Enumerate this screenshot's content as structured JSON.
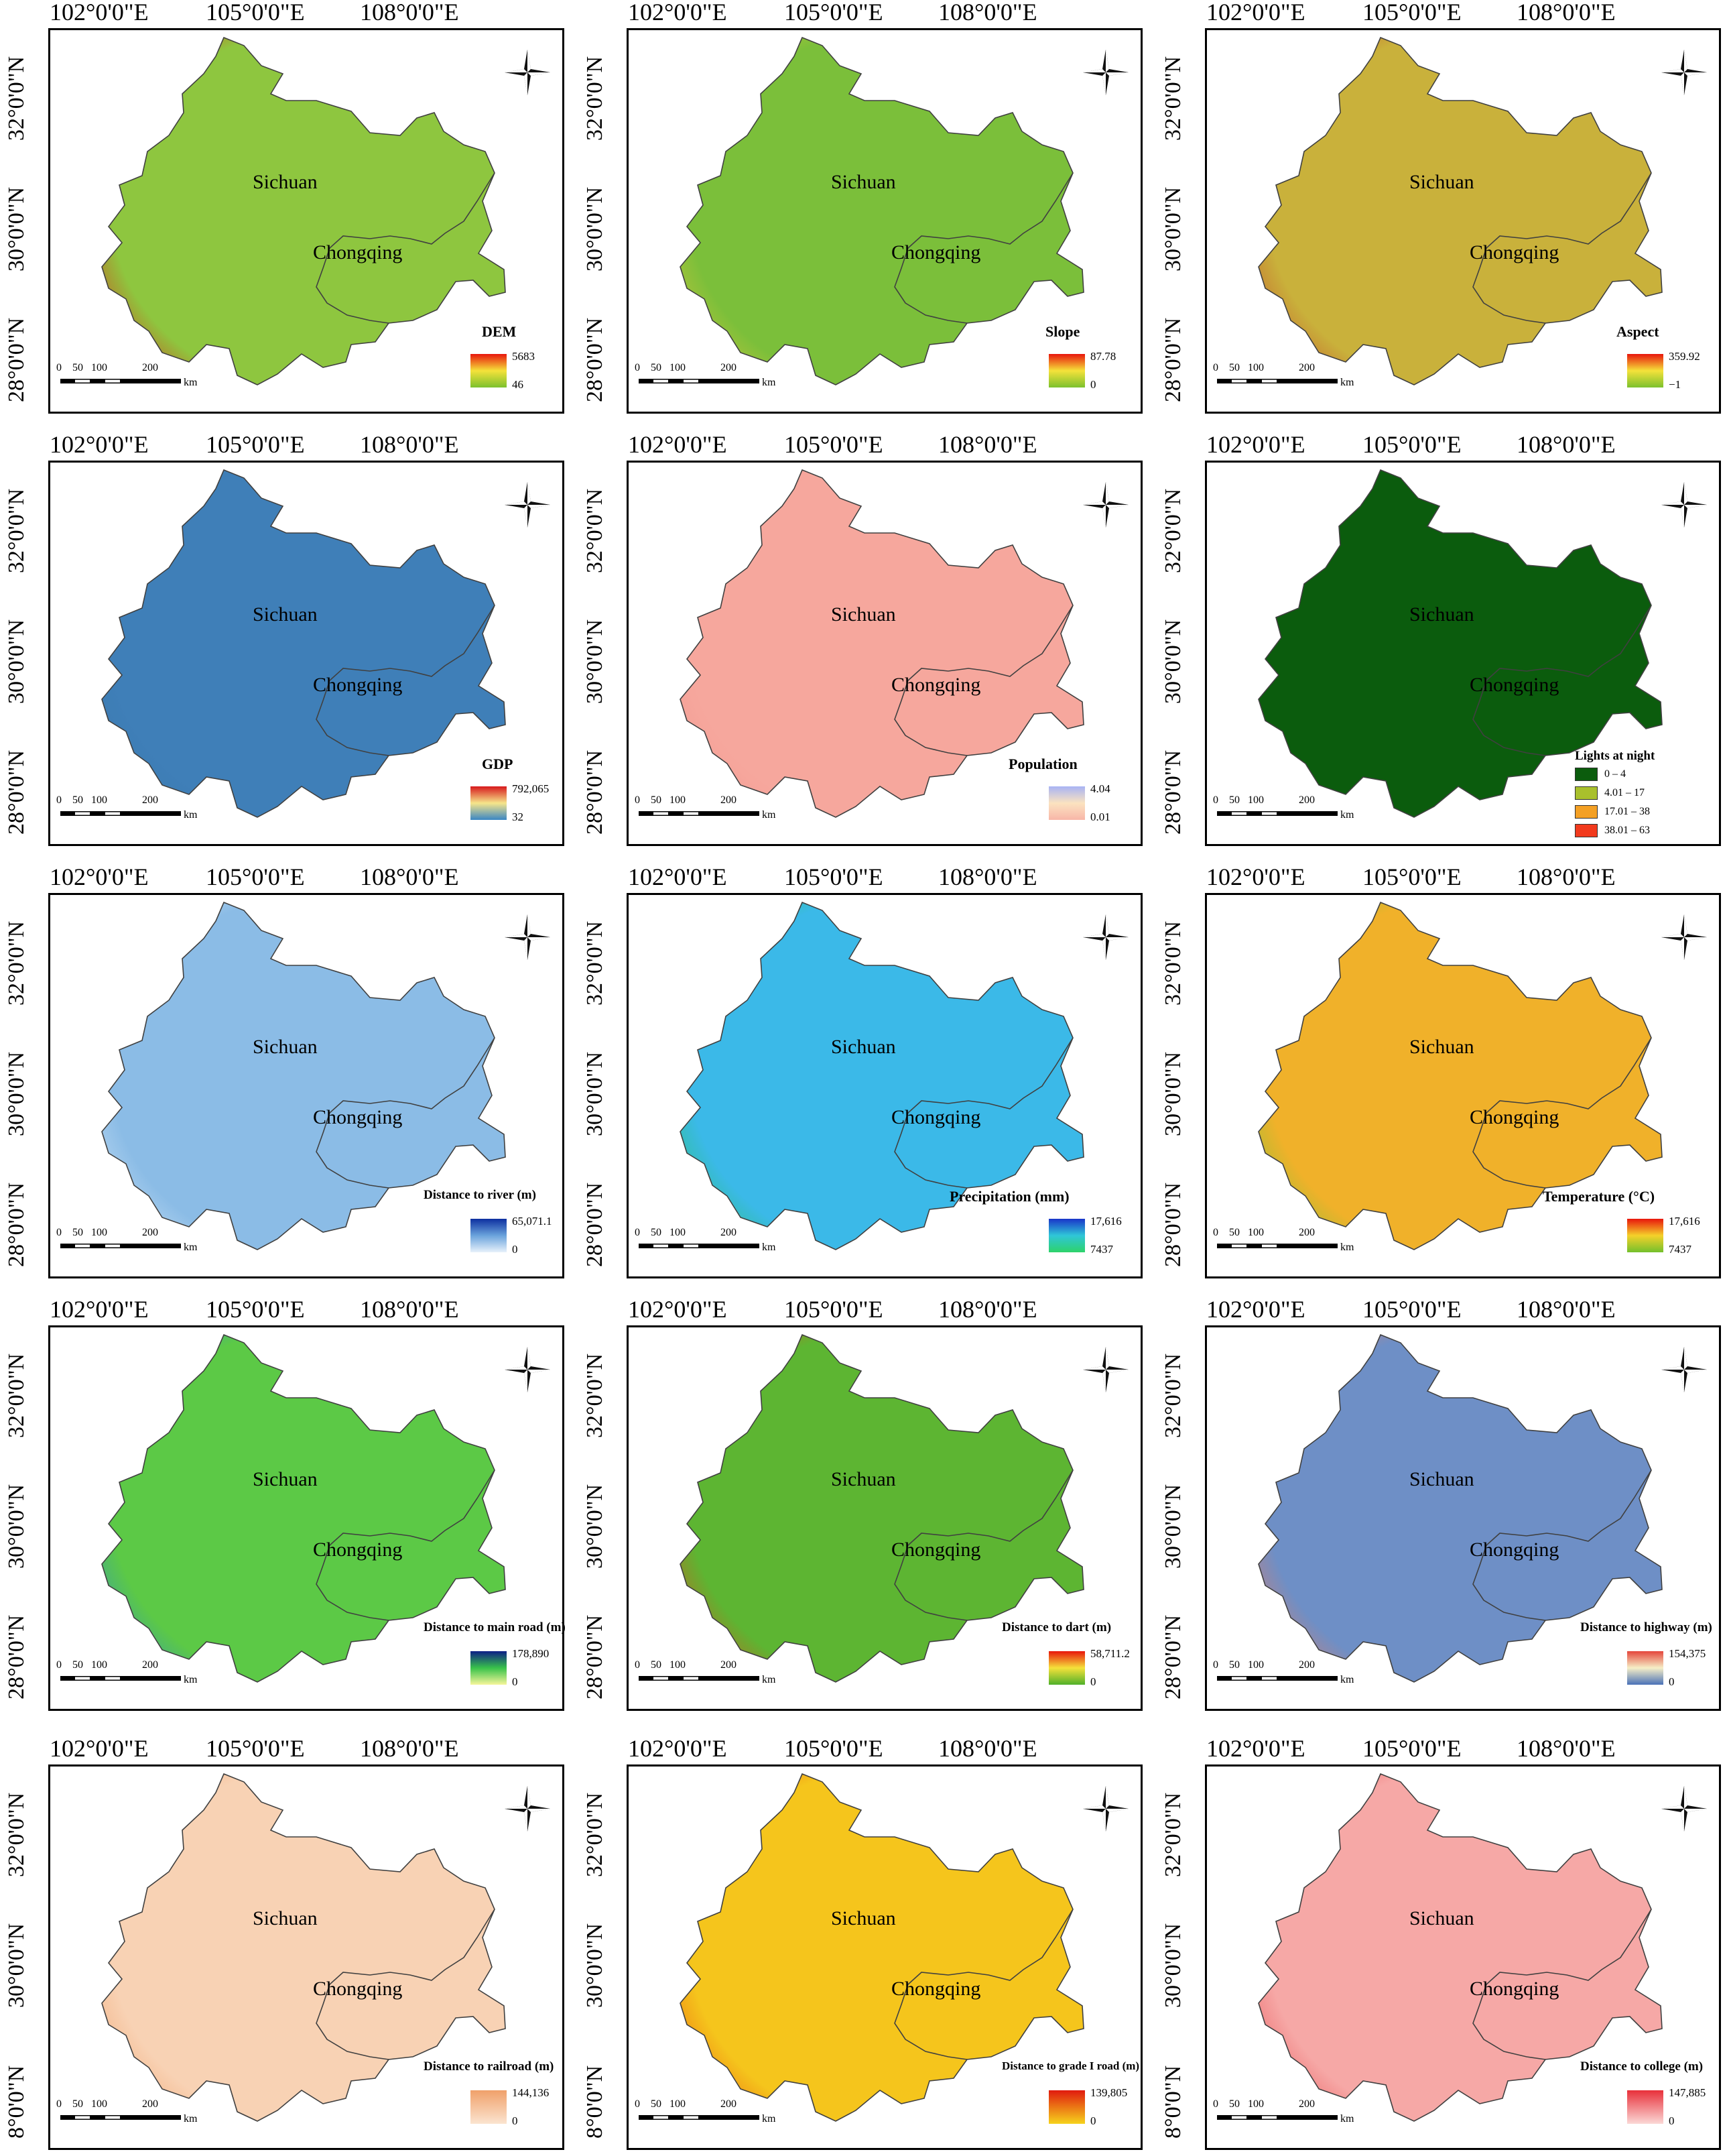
{
  "axes": {
    "lon_ticks": [
      "102°0'0\"E",
      "105°0'0\"E",
      "108°0'0\"E"
    ],
    "lat_ticks": [
      "32°0'0\"N",
      "30°0'0\"N",
      "28°0'0\"N"
    ],
    "lat_ticks_clipped": [
      "32°0'0\"N",
      "30°0'0\"N",
      "8°0'0\"N"
    ]
  },
  "regions": {
    "sichuan": "Sichuan",
    "chongqing": "Chongqing"
  },
  "scale": {
    "ticks": [
      "0",
      "50",
      "100",
      "200"
    ],
    "unit": "km"
  },
  "colors": {
    "outline": "#404040",
    "frame": "#000000"
  },
  "panels": [
    {
      "id": "dem",
      "title": "DEM",
      "max": "5683",
      "min": "46",
      "stops": [
        "#e8160c",
        "#f5e23a",
        "#7cc12e"
      ],
      "fill": "#8ec63f",
      "edge": "#e32212"
    },
    {
      "id": "slope",
      "title": "Slope",
      "max": "87.78",
      "min": "0",
      "stops": [
        "#e8160c",
        "#f5e23a",
        "#7cc12e"
      ],
      "fill": "#7bbf3a",
      "edge": "#d9c63c"
    },
    {
      "id": "aspect",
      "title": "Aspect",
      "max": "359.92",
      "min": "−1",
      "stops": [
        "#e8160c",
        "#f5e23a",
        "#7cc12e"
      ],
      "fill": "#c9b13b",
      "edge": "#c14a2a"
    },
    {
      "id": "gdp",
      "title": "GDP",
      "max": "792,065",
      "min": "32",
      "stops": [
        "#d7191c",
        "#f6e58a",
        "#3a86c4"
      ],
      "fill": "#3f7fb8",
      "edge": "#3a78ad"
    },
    {
      "id": "population",
      "title": "Population",
      "max": "4.04",
      "min": "0.01",
      "stops": [
        "#a8b4f4",
        "#fbe3c0",
        "#f8b6a8"
      ],
      "fill": "#f6a79d",
      "edge": "#f29a91"
    },
    {
      "id": "lights",
      "title": "Lights at night",
      "categories": [
        "0 – 4",
        "4.01 – 17",
        "17.01 – 38",
        "38.01 – 63"
      ],
      "cat_colors": [
        "#0b5c0d",
        "#a9c02c",
        "#f4a024",
        "#f23a1d"
      ],
      "fill": "#0b5c0d",
      "edge": "#0b5c0d"
    },
    {
      "id": "river",
      "title": "Distance to river (m)",
      "max": "65,071.1",
      "min": "0",
      "stops": [
        "#0d2fa0",
        "#6aa3dc",
        "#e7f2fb"
      ],
      "fill": "#8bbce6",
      "edge": "#cfe4f6"
    },
    {
      "id": "precip",
      "title": "Precipitation (mm)",
      "max": "17,616",
      "min": "7437",
      "stops": [
        "#1935c9",
        "#2fc6d8",
        "#2ed36a"
      ],
      "fill": "#3bb9e8",
      "edge": "#29c45f"
    },
    {
      "id": "temp",
      "title": "Temperature (°C)",
      "max": "17,616",
      "min": "7437",
      "stops": [
        "#e8160c",
        "#f5d12a",
        "#73c02c"
      ],
      "fill": "#f0b12a",
      "edge": "#7ac33a"
    },
    {
      "id": "mainroad",
      "title": "Distance to main road (m)",
      "max": "178,890",
      "min": "0",
      "stops": [
        "#0c1f87",
        "#38c24a",
        "#f6f69a"
      ],
      "fill": "#5cc946",
      "edge": "#2f8fc8"
    },
    {
      "id": "dart",
      "title": "Distance to dart (m)",
      "max": "58,711.2",
      "min": "0",
      "stops": [
        "#e8160c",
        "#f5e23a",
        "#4fb02a"
      ],
      "fill": "#5db532",
      "edge": "#e24a1c"
    },
    {
      "id": "highway",
      "title": "Distance to highway (m)",
      "max": "154,375",
      "min": "0",
      "stops": [
        "#e4463b",
        "#f6efc7",
        "#4a72b8"
      ],
      "fill": "#6e8fc6",
      "edge": "#eb7a5e"
    },
    {
      "id": "railroad",
      "title": "Distance to railroad (m)",
      "max": "144,136",
      "min": "0",
      "stops": [
        "#f0a06a",
        "#fbe4d0"
      ],
      "fill": "#f8d2b4",
      "edge": "#f1a470"
    },
    {
      "id": "gradeIroad",
      "title": "Distance to grade I road (m)",
      "max": "139,805",
      "min": "0",
      "stops": [
        "#e01a0e",
        "#f6d31c"
      ],
      "fill": "#f5c51c",
      "edge": "#ea5a10"
    },
    {
      "id": "college",
      "title": "Distance to college (m)",
      "max": "147,885",
      "min": "0",
      "stops": [
        "#e8303a",
        "#fbd8d6"
      ],
      "fill": "#f6a8a6",
      "edge": "#e85054"
    }
  ]
}
